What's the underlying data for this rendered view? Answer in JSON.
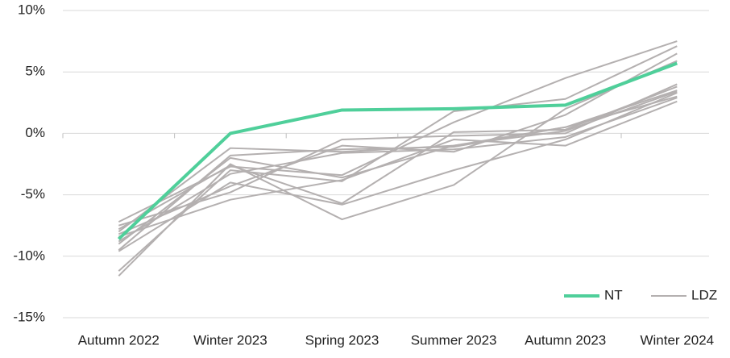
{
  "chart_data": {
    "type": "line",
    "categories": [
      "Autumn 2022",
      "Winter 2023",
      "Spring 2023",
      "Summer 2023",
      "Autumn 2023",
      "Winter 2024"
    ],
    "ylim": [
      -15,
      10
    ],
    "yticks": [
      {
        "value": -15,
        "label": "-15%"
      },
      {
        "value": -10,
        "label": "-10%"
      },
      {
        "value": -5,
        "label": "-5%"
      },
      {
        "value": 0,
        "label": "0%"
      },
      {
        "value": 5,
        "label": "5%"
      },
      {
        "value": 10,
        "label": "10%"
      }
    ],
    "grid": true,
    "legend": "bottom-right",
    "series": [
      {
        "name": "NT",
        "color": "#4fcf9a",
        "values": [
          -8.6,
          0,
          1.9,
          2.0,
          2.3,
          5.7
        ]
      },
      {
        "name": "LDZ",
        "color": "#b4b0b0",
        "values": [
          [
            -8.0,
            -1.2,
            -1.5,
            -1.0,
            0.5,
            3.5
          ],
          [
            -7.2,
            -2.7,
            -3.4,
            0.9,
            4.5,
            7.5
          ],
          [
            -9.6,
            -4.0,
            -5.8,
            -3.0,
            -0.5,
            3.3
          ],
          [
            -11.6,
            -2.5,
            -7.0,
            -4.2,
            2.0,
            5.9
          ],
          [
            -11.2,
            -3.0,
            -3.9,
            1.8,
            2.8,
            7.1
          ],
          [
            -8.4,
            -5.4,
            -3.8,
            -0.5,
            -1.0,
            2.6
          ],
          [
            -7.5,
            -4.8,
            -0.5,
            -0.2,
            0.0,
            4.0
          ],
          [
            -9.5,
            -1.8,
            -1.3,
            -1.1,
            0.5,
            3.0
          ],
          [
            -7.8,
            -2.6,
            -5.7,
            0.1,
            0.3,
            3.8
          ],
          [
            -8.8,
            -3.3,
            -1.6,
            -1.3,
            -0.3,
            2.9
          ],
          [
            -8.2,
            -4.3,
            -1.0,
            -1.5,
            1.5,
            6.5
          ],
          [
            -9.0,
            -2.0,
            -3.6,
            -1.0,
            0.2,
            3.4
          ]
        ]
      }
    ]
  }
}
